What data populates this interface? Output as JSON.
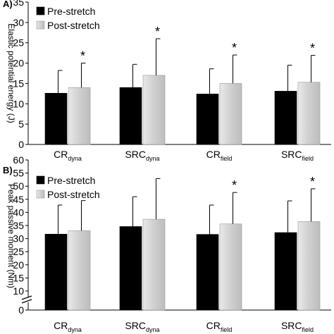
{
  "colors": {
    "pre": "#000000",
    "post": "#cfcfcf"
  },
  "chart_data": [
    {
      "type": "bar",
      "panel_label": "A)",
      "ylabel": "Elastic potential energy (J)",
      "ylim": [
        0,
        35
      ],
      "yticks": [
        0,
        5,
        10,
        15,
        20,
        25,
        30,
        35
      ],
      "legend": [
        "Pre-stretch",
        "Post-stretch"
      ],
      "legend_position": "top-left",
      "categories": [
        {
          "main": "CR",
          "sub": "dyna"
        },
        {
          "main": "SRC",
          "sub": "dyna"
        },
        {
          "main": "CR",
          "sub": "field"
        },
        {
          "main": "SRC",
          "sub": "field"
        }
      ],
      "series": [
        {
          "name": "Pre-stretch",
          "values": [
            12.6,
            14.0,
            12.4,
            13.1
          ],
          "errors": [
            5.6,
            5.7,
            6.2,
            6.4
          ]
        },
        {
          "name": "Post-stretch",
          "values": [
            14.0,
            17.0,
            15.0,
            15.3
          ],
          "errors": [
            6.0,
            9.0,
            7.0,
            6.6
          ]
        }
      ],
      "significance": [
        {
          "category": 0,
          "series": 1,
          "text": "*"
        },
        {
          "category": 1,
          "series": 1,
          "text": "*"
        },
        {
          "category": 2,
          "series": 1,
          "text": "*"
        },
        {
          "category": 3,
          "series": 1,
          "text": "*"
        }
      ]
    },
    {
      "type": "bar",
      "panel_label": "B)",
      "ylabel": "Peak passive moment (Nm)",
      "ylim": [
        0,
        60
      ],
      "yticks": [
        0,
        10,
        15,
        20,
        25,
        30,
        35,
        40,
        45,
        50,
        55,
        60
      ],
      "axis_break": true,
      "legend": [
        "Pre-stretch",
        "Post-stretch"
      ],
      "legend_position": "top-left",
      "categories": [
        {
          "main": "CR",
          "sub": "dyna"
        },
        {
          "main": "SRC",
          "sub": "dyna"
        },
        {
          "main": "CR",
          "sub": "field"
        },
        {
          "main": "SRC",
          "sub": "field"
        }
      ],
      "series": [
        {
          "name": "Pre-stretch",
          "values": [
            31.7,
            34.6,
            31.6,
            32.3
          ],
          "errors": [
            11.1,
            11.4,
            11.2,
            12.1
          ]
        },
        {
          "name": "Post-stretch",
          "values": [
            33.0,
            37.4,
            35.6,
            36.5
          ],
          "errors": [
            11.5,
            15.5,
            12.0,
            12.5
          ]
        }
      ],
      "significance": [
        {
          "category": 2,
          "series": 1,
          "text": "*"
        },
        {
          "category": 3,
          "series": 1,
          "text": "*"
        }
      ]
    }
  ]
}
